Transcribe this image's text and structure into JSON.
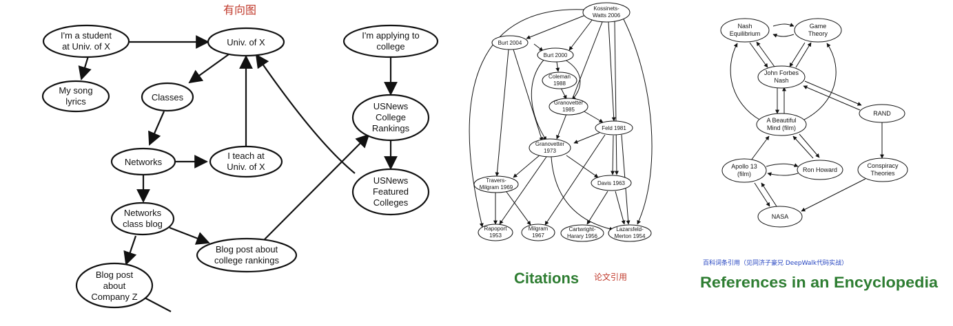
{
  "annotations": {
    "directed_graph": "有向图",
    "citations_title": "Citations",
    "citations_note": "论文引用",
    "encyclopedia_note": "百科词条引用（见同济子豪兄 DeepWalk代码实战）",
    "encyclopedia_title": "References in an Encyclopedia"
  },
  "colors": {
    "title_green": "#2e7d32",
    "note_red": "#c0392b",
    "note_blue": "#1f3fbf"
  },
  "web_graph": {
    "nodes": {
      "student": [
        "I'm a student",
        "at Univ. of X"
      ],
      "univ": [
        "Univ. of X"
      ],
      "song": [
        "My song",
        "lyrics"
      ],
      "classes": [
        "Classes"
      ],
      "networks": [
        "Networks"
      ],
      "teach": [
        "I teach at",
        "Univ. of X"
      ],
      "netblog": [
        "Networks",
        "class blog"
      ],
      "blogcollege": [
        "Blog post about",
        "college rankings"
      ],
      "blogz": [
        "Blog post",
        "about",
        "Company Z"
      ],
      "applying": [
        "I'm applying to",
        "college"
      ],
      "usnews": [
        "USNews",
        "College",
        "Rankings"
      ],
      "featured": [
        "USNews",
        "Featured",
        "Colleges"
      ]
    }
  },
  "citation_graph": {
    "nodes": {
      "kw": [
        "Kossinets-",
        "Watts 2006"
      ],
      "burt04": [
        "Burt 2004"
      ],
      "burt00": [
        "Burt 2000"
      ],
      "coleman": [
        "Coleman",
        "1988"
      ],
      "gran85": [
        "Granovetter",
        "1985"
      ],
      "feld": [
        "Feld 1981"
      ],
      "gran73": [
        "Granovetter",
        "1973"
      ],
      "travers": [
        "Travers-",
        "Milgram 1969"
      ],
      "davis": [
        "Davis 1963"
      ],
      "rapoport": [
        "Rapoport",
        "1953"
      ],
      "milgram": [
        "Milgram",
        "1967"
      ],
      "cartwright": [
        "Cartwright-",
        "Harary 1956"
      ],
      "lazarsfeld": [
        "Lazarsfeld-",
        "Merton 1954"
      ]
    }
  },
  "encyclopedia_graph": {
    "nodes": {
      "nash_eq": [
        "Nash",
        "Equilibrium"
      ],
      "game": [
        "Game",
        "Theory"
      ],
      "jfn": [
        "John Forbes",
        "Nash"
      ],
      "rand": [
        "RAND"
      ],
      "abm": [
        "A Beautiful",
        "Mind (film)"
      ],
      "apollo": [
        "Apollo 13",
        "(film)"
      ],
      "ron": [
        "Ron Howard"
      ],
      "conspiracy": [
        "Conspiracy",
        "Theories"
      ],
      "nasa": [
        "NASA"
      ]
    }
  }
}
